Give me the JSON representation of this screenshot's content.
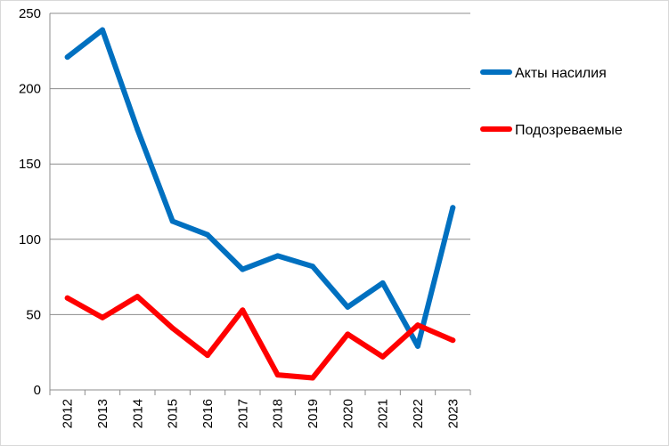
{
  "chart_data": {
    "type": "line",
    "categories": [
      "2012",
      "2013",
      "2014",
      "2015",
      "2016",
      "2017",
      "2018",
      "2019",
      "2020",
      "2021",
      "2022",
      "2023"
    ],
    "series": [
      {
        "name": "Акты насилия",
        "color": "#0070C0",
        "values": [
          221,
          239,
          173,
          112,
          103,
          80,
          89,
          82,
          55,
          71,
          29,
          121
        ]
      },
      {
        "name": "Подозреваемые",
        "color": "#FF0000",
        "values": [
          61,
          48,
          62,
          41,
          23,
          53,
          10,
          8,
          37,
          22,
          43,
          33
        ]
      }
    ],
    "y_ticks": [
      "0",
      "50",
      "100",
      "150",
      "200",
      "250"
    ],
    "ylim": [
      0,
      250
    ],
    "grid": true,
    "legend_position": "right",
    "xlabel": "",
    "ylabel": "",
    "title": ""
  }
}
